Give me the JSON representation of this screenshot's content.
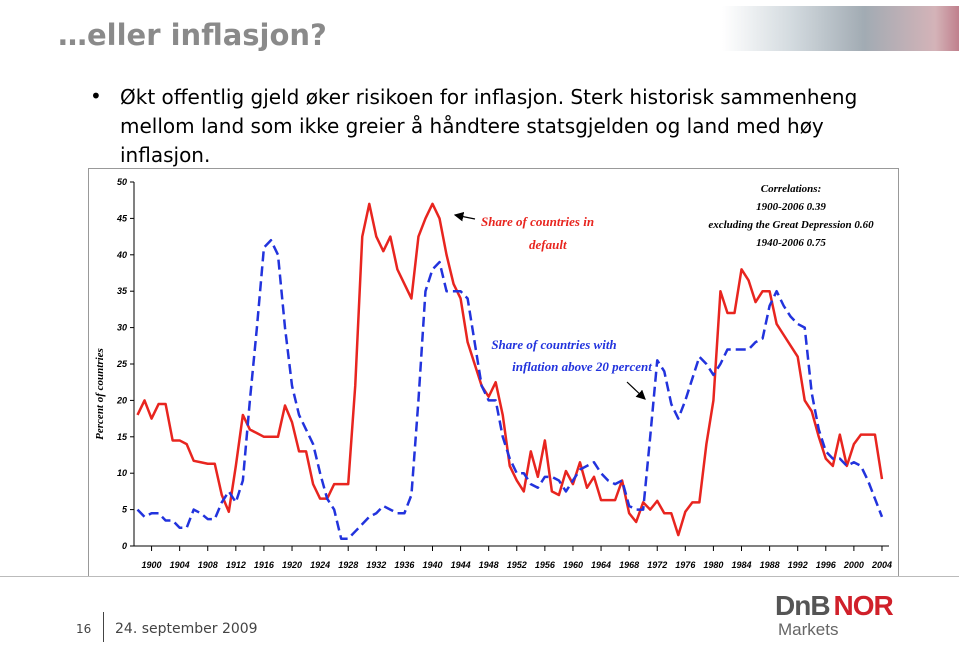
{
  "slide": {
    "title": "…eller inflasjon?",
    "bullet": "Økt offentlig gjeld øker risikoen for inflasjon. Sterk historisk sammenheng mellom land som ikke greier å håndtere statsgjelden og land med høy inflasjon.",
    "page_number": "16",
    "date": "24. september 2009",
    "logo": {
      "part1": "DnB",
      "part2": "NOR",
      "sub": "Markets"
    }
  },
  "chart_data": {
    "type": "line",
    "y_label": "Percent of countries",
    "annotations": {
      "default": [
        "Share of countries in",
        "default"
      ],
      "inflation": [
        "Share of countries with",
        "inflation above 20 percent"
      ],
      "correlations": [
        "Correlations:",
        "1900-2006 0.39",
        "excluding the Great Depression 0.60",
        "1940-2006  0.75"
      ]
    },
    "x": [
      1898,
      1899,
      1900,
      1901,
      1902,
      1903,
      1904,
      1905,
      1906,
      1907,
      1908,
      1909,
      1910,
      1911,
      1912,
      1913,
      1914,
      1915,
      1916,
      1917,
      1918,
      1919,
      1920,
      1921,
      1922,
      1923,
      1924,
      1925,
      1926,
      1927,
      1928,
      1929,
      1930,
      1931,
      1932,
      1933,
      1934,
      1935,
      1936,
      1937,
      1938,
      1939,
      1940,
      1941,
      1942,
      1943,
      1944,
      1945,
      1946,
      1947,
      1948,
      1949,
      1950,
      1951,
      1952,
      1953,
      1954,
      1955,
      1956,
      1957,
      1958,
      1959,
      1960,
      1961,
      1962,
      1963,
      1964,
      1965,
      1966,
      1967,
      1968,
      1969,
      1970,
      1971,
      1972,
      1973,
      1974,
      1975,
      1976,
      1977,
      1978,
      1979,
      1980,
      1981,
      1982,
      1983,
      1984,
      1985,
      1986,
      1987,
      1988,
      1989,
      1990,
      1991,
      1992,
      1993,
      1994,
      1995,
      1996,
      1997,
      1998,
      1999,
      2000,
      2001,
      2002,
      2003,
      2004
    ],
    "series": [
      {
        "name": "Share of countries in default",
        "color": "#e8251f",
        "dashed": false,
        "values": [
          18,
          20,
          17.5,
          19.5,
          19.5,
          14.5,
          14.5,
          14,
          11.7,
          11.5,
          11.3,
          11.3,
          7,
          4.7,
          11,
          18,
          16,
          15.5,
          15,
          15,
          15,
          19.3,
          17,
          13,
          13,
          8.5,
          6.5,
          6.5,
          8.5,
          8.5,
          8.5,
          22,
          42.5,
          47,
          42.5,
          40.5,
          42.5,
          38,
          36,
          34,
          42.5,
          45,
          47,
          45,
          40,
          36,
          34,
          28,
          25,
          22,
          20.5,
          22.5,
          18,
          11,
          9,
          7.5,
          13,
          9.5,
          14.5,
          7.5,
          7,
          10.3,
          8.5,
          11.5,
          8,
          9.5,
          6.3,
          6.3,
          6.3,
          9,
          4.5,
          3.3,
          6,
          5,
          6.2,
          4.5,
          4.5,
          1.5,
          4.7,
          6,
          6,
          14,
          20,
          35,
          32,
          32,
          38,
          36.5,
          33.5,
          35,
          35,
          30.5,
          29,
          27.5,
          26,
          20,
          18.5,
          15,
          12,
          11,
          15.3,
          11,
          14,
          15.3,
          15.3,
          15.3,
          9.2
        ]
      },
      {
        "name": "Share of countries with inflation above 20 percent",
        "color": "#2233dd",
        "dashed": true,
        "values": [
          5,
          4,
          4.5,
          4.5,
          3.5,
          3.5,
          2.5,
          2.5,
          5,
          4.5,
          3.7,
          3.7,
          6,
          7.5,
          6,
          9,
          20,
          30,
          41,
          42,
          40,
          30,
          22,
          18,
          16,
          14,
          10,
          6.5,
          5,
          1,
          1,
          2,
          3,
          4,
          4.5,
          5.5,
          5,
          4.5,
          4.5,
          7,
          20,
          35,
          38,
          39,
          35,
          35,
          35,
          34,
          28,
          22,
          20,
          20,
          15,
          12,
          10,
          10,
          8.5,
          8,
          9.5,
          9.5,
          9,
          7.5,
          9,
          10.5,
          11,
          11.5,
          10,
          9,
          8.5,
          9,
          5.5,
          5,
          5,
          15,
          25.5,
          24,
          19.5,
          17.5,
          20,
          23,
          26,
          25,
          23.5,
          25,
          27,
          27,
          27,
          27,
          28,
          28.5,
          33,
          35,
          33,
          31.5,
          30.5,
          30,
          21,
          16,
          13,
          12,
          12,
          11,
          11.5,
          11,
          9,
          6.5,
          4
        ]
      }
    ],
    "xlim": [
      1897.5,
      2005
    ],
    "xticks": [
      1900,
      1904,
      1908,
      1912,
      1916,
      1920,
      1924,
      1928,
      1932,
      1936,
      1940,
      1944,
      1948,
      1952,
      1956,
      1960,
      1964,
      1968,
      1972,
      1976,
      1980,
      1984,
      1988,
      1992,
      1996,
      2000,
      2004
    ],
    "ylim": [
      0,
      50
    ],
    "yticks": [
      0,
      5,
      10,
      15,
      20,
      25,
      30,
      35,
      40,
      45,
      50
    ],
    "grid": false
  }
}
